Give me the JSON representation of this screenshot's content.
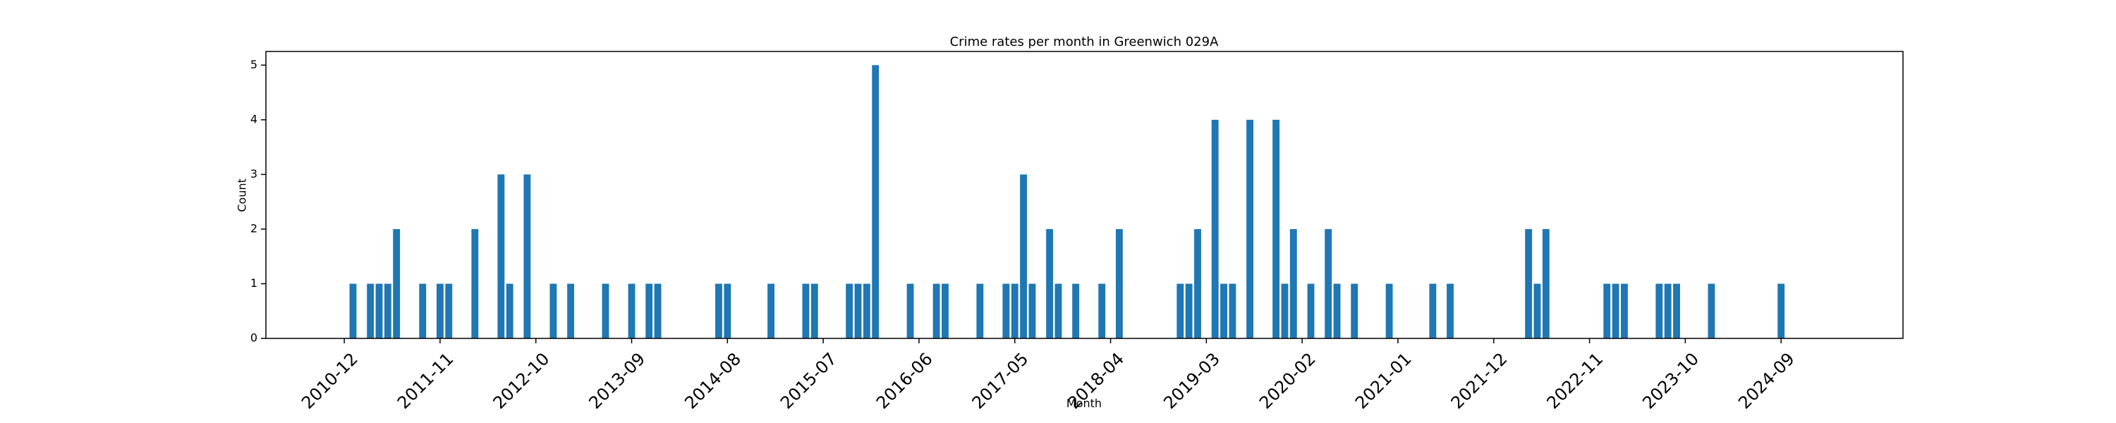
{
  "chart_data": {
    "type": "bar",
    "title": "Crime rates per month in Greenwich 029A",
    "x_label": "Month",
    "y_label": "Count",
    "color": "#1f77b4",
    "x": [
      "2011-01",
      "2011-03",
      "2011-04",
      "2011-05",
      "2011-06",
      "2011-09",
      "2011-11",
      "2011-12",
      "2012-03",
      "2012-06",
      "2012-07",
      "2012-09",
      "2012-12",
      "2013-02",
      "2013-06",
      "2013-09",
      "2013-11",
      "2013-12",
      "2014-07",
      "2014-08",
      "2015-01",
      "2015-05",
      "2015-06",
      "2015-10",
      "2015-11",
      "2015-12",
      "2016-01",
      "2016-05",
      "2016-08",
      "2016-09",
      "2017-01",
      "2017-04",
      "2017-05",
      "2017-06",
      "2017-07",
      "2017-09",
      "2017-10",
      "2017-12",
      "2018-03",
      "2018-05",
      "2018-12",
      "2019-01",
      "2019-02",
      "2019-04",
      "2019-05",
      "2019-06",
      "2019-08",
      "2019-11",
      "2019-12",
      "2020-01",
      "2020-03",
      "2020-05",
      "2020-06",
      "2020-08",
      "2020-12",
      "2021-05",
      "2021-07",
      "2022-04",
      "2022-05",
      "2022-06",
      "2023-01",
      "2023-02",
      "2023-03",
      "2023-07",
      "2023-08",
      "2023-09",
      "2024-01",
      "2024-09"
    ],
    "values": [
      1,
      1,
      1,
      1,
      2,
      1,
      1,
      1,
      2,
      3,
      1,
      3,
      1,
      1,
      1,
      1,
      1,
      1,
      1,
      1,
      1,
      1,
      1,
      1,
      1,
      1,
      5,
      1,
      1,
      1,
      1,
      1,
      1,
      3,
      1,
      2,
      1,
      1,
      1,
      2,
      1,
      1,
      2,
      4,
      1,
      1,
      4,
      4,
      1,
      2,
      1,
      2,
      1,
      1,
      1,
      1,
      1,
      2,
      1,
      2,
      1,
      1,
      1,
      1,
      1,
      1,
      1,
      1
    ],
    "xlim": [
      "2010-03",
      "2025-11"
    ],
    "xticks": [
      "2010-12",
      "2011-11",
      "2012-10",
      "2013-09",
      "2014-08",
      "2015-07",
      "2016-06",
      "2017-05",
      "2018-04",
      "2019-03",
      "2020-02",
      "2021-01",
      "2021-12",
      "2022-11",
      "2023-10",
      "2024-09"
    ],
    "ylim": [
      0,
      5.25
    ],
    "yticks": [
      0,
      1,
      2,
      3,
      4,
      5
    ],
    "grid": false
  }
}
